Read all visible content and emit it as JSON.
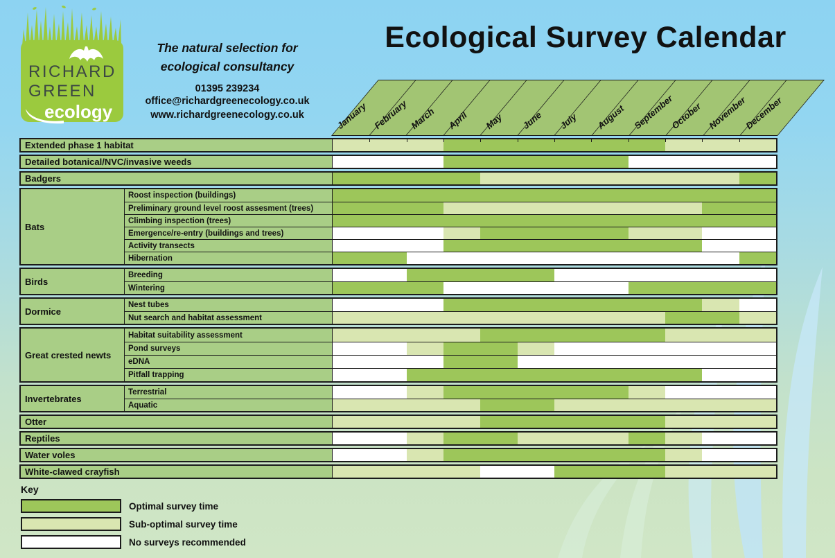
{
  "logo": {
    "line1": "RICHARD",
    "line2": "GREEN",
    "line3": "ecology"
  },
  "contact": {
    "tagline_line1": "The natural selection for",
    "tagline_line2": "ecological consultancy",
    "phone": "01395 239234",
    "email": "office@richardgreenecology.co.uk",
    "website": "www.richardgreenecology.co.uk"
  },
  "key": {
    "title": "Key"
  },
  "colors": {
    "optimal": "#9DC65A",
    "suboptimal": "#D9E6B1",
    "none": "#FFFFFF",
    "header_green": "#A2C573",
    "label_green": "#A9CE86",
    "logo_green": "#9BCA3E",
    "background_sky": "#8DD3F2",
    "background_grass": "#CCE4C4"
  },
  "chart_data": {
    "type": "heatmap",
    "title": "Ecological Survey Calendar",
    "x_labels": [
      "January",
      "February",
      "March",
      "April",
      "May",
      "June",
      "July",
      "August",
      "September",
      "October",
      "November",
      "December"
    ],
    "legend": [
      {
        "code": "O",
        "label": "Optimal survey time",
        "color": "#9DC65A"
      },
      {
        "code": "S",
        "label": "Sub-optimal survey time",
        "color": "#D9E6B1"
      },
      {
        "code": "N",
        "label": "No surveys recommended",
        "color": "#FFFFFF"
      }
    ],
    "sections": [
      {
        "label": "Extended phase 1 habitat",
        "rows": [
          {
            "label": null,
            "cells": "SSSOOOOOOSSS"
          }
        ]
      },
      {
        "label": "Detailed botanical/NVC/invasive weeds",
        "rows": [
          {
            "label": null,
            "cells": "NNNOOOOONNNN"
          }
        ]
      },
      {
        "label": "Badgers",
        "rows": [
          {
            "label": null,
            "cells": "OOOOSSSSSSSO"
          }
        ]
      },
      {
        "label": "Bats",
        "rows": [
          {
            "label": "Roost inspection (buildings)",
            "cells": "OOOOOOOOOOOO"
          },
          {
            "label": "Preliminary ground level roost assesment (trees)",
            "cells": "OOOSSSSSSSOO"
          },
          {
            "label": "Climbing inspection (trees)",
            "cells": "OOOOOOOOOOOO"
          },
          {
            "label": "Emergence/re-entry (buildings and trees)",
            "cells": "NNNSOOOOSSNN"
          },
          {
            "label": "Activity transects",
            "cells": "NNNOOOOOOONN"
          },
          {
            "label": "Hibernation",
            "cells": "OONNNNNNNNNO"
          }
        ]
      },
      {
        "label": "Birds",
        "rows": [
          {
            "label": "Breeding",
            "cells": "NNOOOONNNNNN"
          },
          {
            "label": "Wintering",
            "cells": "OOONNNNNOOOO"
          }
        ]
      },
      {
        "label": "Dormice",
        "rows": [
          {
            "label": "Nest tubes",
            "cells": "NNNOOOOOOOSN"
          },
          {
            "label": "Nut search and habitat assessment",
            "cells": "SSSSSSSSSOOS"
          }
        ]
      },
      {
        "label": "Great crested newts",
        "rows": [
          {
            "label": "Habitat suitability assessment",
            "cells": "SSSSOOOOOSSS"
          },
          {
            "label": "Pond surveys",
            "cells": "NNSOOSNNNNNN"
          },
          {
            "label": "eDNA",
            "cells": "NNNOONNNNNNN"
          },
          {
            "label": "Pitfall trapping",
            "cells": "NNOOOOOOOONN"
          }
        ]
      },
      {
        "label": "Invertebrates",
        "rows": [
          {
            "label": "Terrestrial",
            "cells": "NNSOOOOOSNNN"
          },
          {
            "label": "Aquatic",
            "cells": "SSSSOOSSSSSS"
          }
        ]
      },
      {
        "label": "Otter",
        "rows": [
          {
            "label": null,
            "cells": "SSSSOOOOOSSS"
          }
        ]
      },
      {
        "label": "Reptiles",
        "rows": [
          {
            "label": null,
            "cells": "NNSOOSSSOSNN"
          }
        ]
      },
      {
        "label": "Water voles",
        "rows": [
          {
            "label": null,
            "cells": "NNSOOOOOOSNN"
          }
        ]
      },
      {
        "label": "White-clawed crayfish",
        "rows": [
          {
            "label": null,
            "cells": "SSSSNNOOOSSS"
          }
        ]
      }
    ]
  }
}
